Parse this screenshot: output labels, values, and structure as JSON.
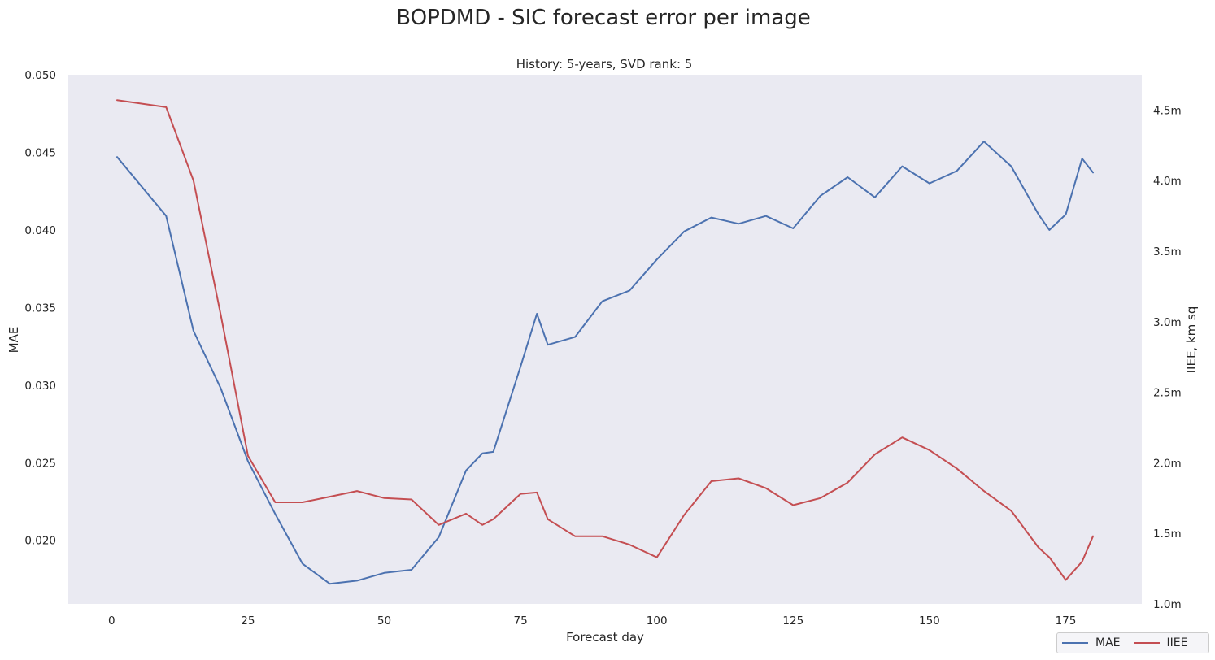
{
  "chart_data": {
    "type": "line",
    "title": "BOPDMD - SIC forecast error per image",
    "subtitle": "History: 5-years, SVD rank: 5",
    "xlabel": "Forecast day",
    "ylabel_left": "MAE",
    "ylabel_right": "IIEE, km sq",
    "xlim": [
      -7.95,
      188.95
    ],
    "ylim_left": [
      0.0159,
      0.05
    ],
    "ylim_right": [
      1.0,
      4.75
    ],
    "x_ticks": [
      0,
      25,
      50,
      75,
      100,
      125,
      150,
      175
    ],
    "y_left_ticks": [
      {
        "value": 0.02,
        "label": "0.020"
      },
      {
        "value": 0.025,
        "label": "0.025"
      },
      {
        "value": 0.03,
        "label": "0.030"
      },
      {
        "value": 0.035,
        "label": "0.035"
      },
      {
        "value": 0.04,
        "label": "0.040"
      },
      {
        "value": 0.045,
        "label": "0.045"
      },
      {
        "value": 0.05,
        "label": "0.050"
      }
    ],
    "y_right_ticks": [
      {
        "value": 1.0,
        "label": "1.0m"
      },
      {
        "value": 1.5,
        "label": "1.5m"
      },
      {
        "value": 2.0,
        "label": "2.0m"
      },
      {
        "value": 2.5,
        "label": "2.5m"
      },
      {
        "value": 3.0,
        "label": "3.0m"
      },
      {
        "value": 3.5,
        "label": "3.5m"
      },
      {
        "value": 4.0,
        "label": "4.0m"
      },
      {
        "value": 4.5,
        "label": "4.5m"
      }
    ],
    "grid": false,
    "legend_position": "bottom-right",
    "x": [
      1,
      10,
      15,
      20,
      25,
      30,
      35,
      40,
      45,
      50,
      55,
      60,
      65,
      68,
      70,
      75,
      78,
      80,
      85,
      90,
      95,
      100,
      105,
      110,
      115,
      120,
      125,
      130,
      135,
      140,
      145,
      150,
      155,
      160,
      165,
      170,
      172,
      175,
      178,
      180
    ],
    "series": [
      {
        "name": "MAE",
        "axis": "left",
        "color": "#4c72b0",
        "values": [
          0.0447,
          0.0409,
          0.0335,
          0.0298,
          0.0251,
          0.0217,
          0.0185,
          0.0172,
          0.0174,
          0.0179,
          0.0181,
          0.0202,
          0.0245,
          0.0256,
          0.0257,
          0.0312,
          0.0346,
          0.0326,
          0.0331,
          0.0354,
          0.0361,
          0.0381,
          0.0399,
          0.0408,
          0.0404,
          0.0409,
          0.0401,
          0.0422,
          0.0434,
          0.0421,
          0.0441,
          0.043,
          0.0438,
          0.0457,
          0.0441,
          0.041,
          0.04,
          0.041,
          0.0446,
          0.0437
        ]
      },
      {
        "name": "IIEE",
        "axis": "right",
        "color": "#c44e52",
        "values": [
          4.57,
          4.52,
          4.0,
          3.05,
          2.05,
          1.72,
          1.72,
          1.76,
          1.8,
          1.75,
          1.74,
          1.56,
          1.64,
          1.56,
          1.6,
          1.78,
          1.79,
          1.6,
          1.48,
          1.48,
          1.42,
          1.33,
          1.63,
          1.87,
          1.89,
          1.82,
          1.7,
          1.75,
          1.86,
          2.06,
          2.18,
          2.09,
          1.96,
          1.8,
          1.66,
          1.4,
          1.33,
          1.17,
          1.3,
          1.48
        ]
      }
    ]
  }
}
